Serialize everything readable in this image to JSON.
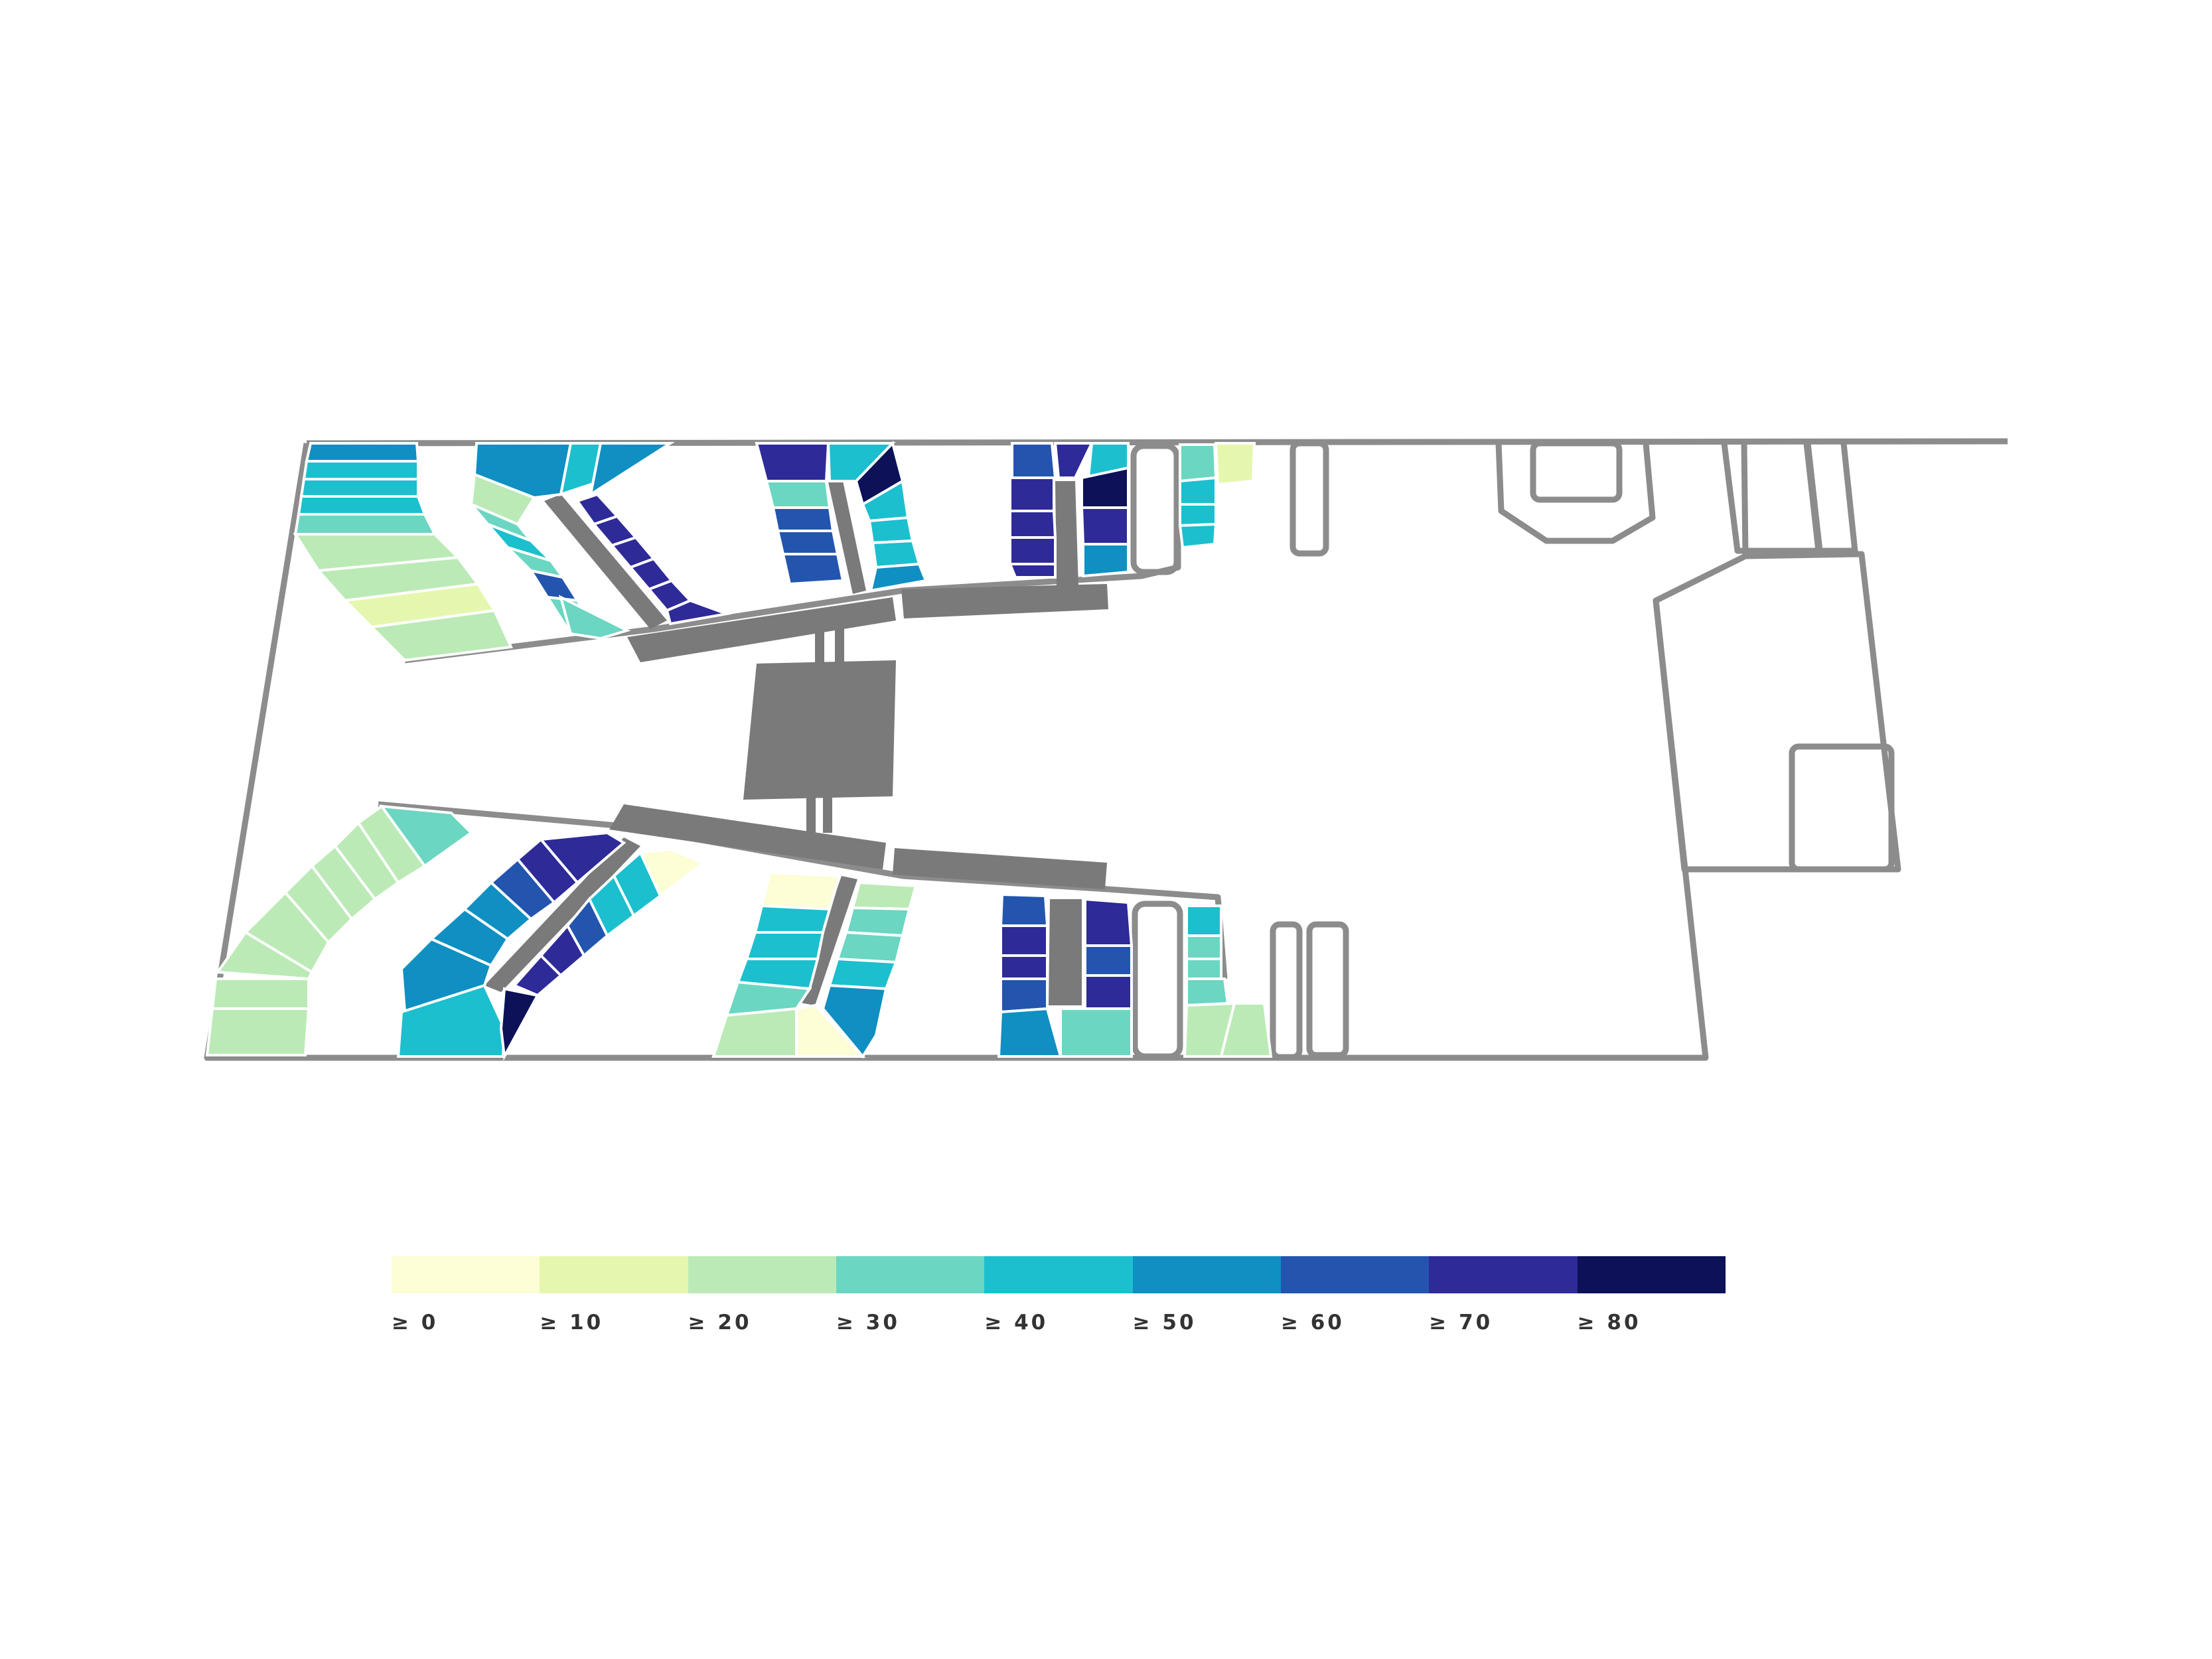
{
  "legend": {
    "labels": [
      "≥ 0",
      "≥ 10",
      "≥ 20",
      "≥ 30",
      "≥ 40",
      "≥ 50",
      "≥ 60",
      "≥ 70",
      "≥ 80"
    ],
    "colors": [
      "#fdfdd6",
      "#e5f7ae",
      "#bbeab6",
      "#6bd6c2",
      "#1cbfce",
      "#0f8fc2",
      "#2355ae",
      "#2e2a98",
      "#0c1158"
    ]
  },
  "colors": {
    "outline": "#8c8c8c",
    "structure": "#7a7a7a",
    "divider": "#ffffff",
    "background": "#ffffff"
  }
}
